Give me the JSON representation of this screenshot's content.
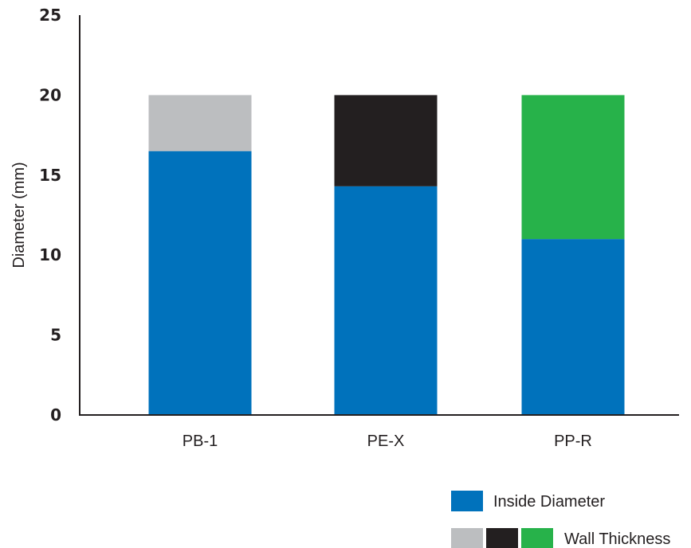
{
  "chart_data": {
    "type": "bar",
    "stacked": true,
    "title": "",
    "xlabel": "",
    "ylabel": "Diameter (mm)",
    "ylim": [
      0,
      25
    ],
    "yticks": [
      0,
      5,
      10,
      15,
      20,
      25
    ],
    "grid": false,
    "categories": [
      "PB-1",
      "PE-X",
      "PP-R"
    ],
    "series": [
      {
        "name": "Inside Diameter",
        "values": [
          16.5,
          14.3,
          11.0
        ],
        "colors": [
          "#0072bc",
          "#0072bc",
          "#0072bc"
        ]
      },
      {
        "name": "Wall Thickness",
        "values": [
          3.5,
          5.7,
          9.0
        ],
        "colors": [
          "#bcbec0",
          "#231f20",
          "#27b24a"
        ]
      }
    ],
    "legend": {
      "placement": "bottom-right",
      "entries": [
        {
          "label": "Inside Diameter",
          "swatches": [
            "#0072bc"
          ]
        },
        {
          "label": "Wall Thickness",
          "swatches": [
            "#bcbec0",
            "#231f20",
            "#27b24a"
          ]
        }
      ]
    },
    "axis_color": "#231f20"
  }
}
